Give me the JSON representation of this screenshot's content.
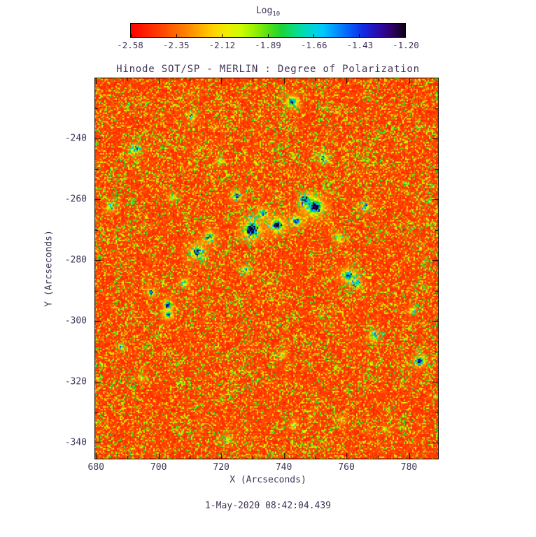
{
  "title": "Hinode SOT/SP - MERLIN : Degree of Polarization",
  "timestamp": "1-May-2020 08:42:04.439",
  "colors": {
    "text": "#413457",
    "axis": "#000000",
    "background": "#ffffff"
  },
  "colorbar": {
    "label_main": "Log",
    "label_sub": "10",
    "tick_labels": [
      "-2.58",
      "-2.35",
      "-2.12",
      "-1.89",
      "-1.66",
      "-1.43",
      "-1.20"
    ]
  },
  "chart_data": {
    "type": "heatmap",
    "title": "Hinode SOT/SP - MERLIN : Degree of Polarization",
    "xlabel": "X (Arcseconds)",
    "ylabel": "Y (Arcseconds)",
    "x_range": [
      679.5,
      789.5
    ],
    "y_range": [
      -345.5,
      -220.0
    ],
    "x_ticks": [
      680,
      700,
      720,
      740,
      760,
      780
    ],
    "y_ticks": [
      -240,
      -260,
      -280,
      -300,
      -320,
      -340
    ],
    "value_scale": "log10(degree of polarization)",
    "value_range": [
      -2.58,
      -1.2
    ],
    "background_level": [
      -2.6,
      -2.3
    ],
    "grid": false,
    "legend": "horizontal colorbar above plot",
    "description": "Quiet-sun polarization map: dominant red/orange background (low polarization) with granular yellow-green speckle network and isolated cyan/blue/dark-navy patches of strong polarization.",
    "noise_seed": 1337,
    "colormap_stops": [
      [
        0.0,
        [
          255,
          0,
          0
        ]
      ],
      [
        0.1,
        [
          255,
          60,
          0
        ]
      ],
      [
        0.2,
        [
          255,
          130,
          0
        ]
      ],
      [
        0.3,
        [
          255,
          210,
          0
        ]
      ],
      [
        0.38,
        [
          230,
          255,
          0
        ]
      ],
      [
        0.46,
        [
          140,
          240,
          0
        ]
      ],
      [
        0.54,
        [
          30,
          210,
          40
        ]
      ],
      [
        0.62,
        [
          0,
          225,
          170
        ]
      ],
      [
        0.7,
        [
          0,
          200,
          255
        ]
      ],
      [
        0.78,
        [
          0,
          110,
          255
        ]
      ],
      [
        0.86,
        [
          20,
          30,
          220
        ]
      ],
      [
        0.93,
        [
          60,
          0,
          140
        ]
      ],
      [
        1.0,
        [
          15,
          0,
          20
        ]
      ]
    ],
    "features": [
      {
        "x": 729.5,
        "y": -269.5,
        "r": 2.0,
        "s": 1.0
      },
      {
        "x": 737.8,
        "y": -268.3,
        "r": 1.6,
        "s": 0.95
      },
      {
        "x": 733.0,
        "y": -264.0,
        "r": 1.2,
        "s": 0.6
      },
      {
        "x": 749.8,
        "y": -262.5,
        "r": 2.1,
        "s": 1.0
      },
      {
        "x": 744.0,
        "y": -267.0,
        "r": 1.3,
        "s": 0.75
      },
      {
        "x": 746.5,
        "y": -260.0,
        "r": 1.4,
        "s": 0.7
      },
      {
        "x": 702.6,
        "y": -294.5,
        "r": 1.1,
        "s": 0.85
      },
      {
        "x": 702.6,
        "y": -297.8,
        "r": 1.0,
        "s": 0.8
      },
      {
        "x": 697.3,
        "y": -290.2,
        "r": 1.0,
        "s": 0.6
      },
      {
        "x": 760.6,
        "y": -284.8,
        "r": 1.5,
        "s": 0.8
      },
      {
        "x": 763.0,
        "y": -287.5,
        "r": 1.2,
        "s": 0.6
      },
      {
        "x": 783.2,
        "y": -313.0,
        "r": 1.3,
        "s": 0.85
      },
      {
        "x": 724.6,
        "y": -258.6,
        "r": 1.2,
        "s": 0.6
      },
      {
        "x": 742.6,
        "y": -228.0,
        "r": 1.5,
        "s": 0.7
      },
      {
        "x": 712.2,
        "y": -276.8,
        "r": 1.9,
        "s": 0.55
      },
      {
        "x": 716.2,
        "y": -271.8,
        "r": 1.5,
        "s": 0.5
      },
      {
        "x": 765.8,
        "y": -262.4,
        "r": 1.2,
        "s": 0.5
      },
      {
        "x": 752.2,
        "y": -246.4,
        "r": 1.3,
        "s": 0.5
      },
      {
        "x": 692.4,
        "y": -243.6,
        "r": 1.4,
        "s": 0.5
      },
      {
        "x": 684.6,
        "y": -262.4,
        "r": 1.2,
        "s": 0.45
      },
      {
        "x": 710.2,
        "y": -232.4,
        "r": 1.2,
        "s": 0.45
      },
      {
        "x": 727.2,
        "y": -283.2,
        "r": 1.2,
        "s": 0.4
      },
      {
        "x": 768.6,
        "y": -304.6,
        "r": 1.3,
        "s": 0.5
      },
      {
        "x": 739.6,
        "y": -311.2,
        "r": 1.0,
        "s": 0.35
      },
      {
        "x": 722.2,
        "y": -338.4,
        "r": 1.0,
        "s": 0.45
      },
      {
        "x": 743.2,
        "y": -334.2,
        "r": 1.0,
        "s": 0.35
      },
      {
        "x": 772.2,
        "y": -335.2,
        "r": 0.9,
        "s": 0.3
      },
      {
        "x": 688.2,
        "y": -308.2,
        "r": 1.0,
        "s": 0.35
      },
      {
        "x": 694.2,
        "y": -318.2,
        "r": 1.0,
        "s": 0.3
      },
      {
        "x": 758.2,
        "y": -332.2,
        "r": 0.9,
        "s": 0.3
      },
      {
        "x": 704.2,
        "y": -259.2,
        "r": 1.1,
        "s": 0.4
      },
      {
        "x": 719.2,
        "y": -247.2,
        "r": 1.0,
        "s": 0.35
      },
      {
        "x": 757.2,
        "y": -272.2,
        "r": 1.2,
        "s": 0.45
      },
      {
        "x": 781.2,
        "y": -296.2,
        "r": 1.0,
        "s": 0.35
      },
      {
        "x": 708.0,
        "y": -287.0,
        "r": 1.2,
        "s": 0.4
      }
    ]
  }
}
